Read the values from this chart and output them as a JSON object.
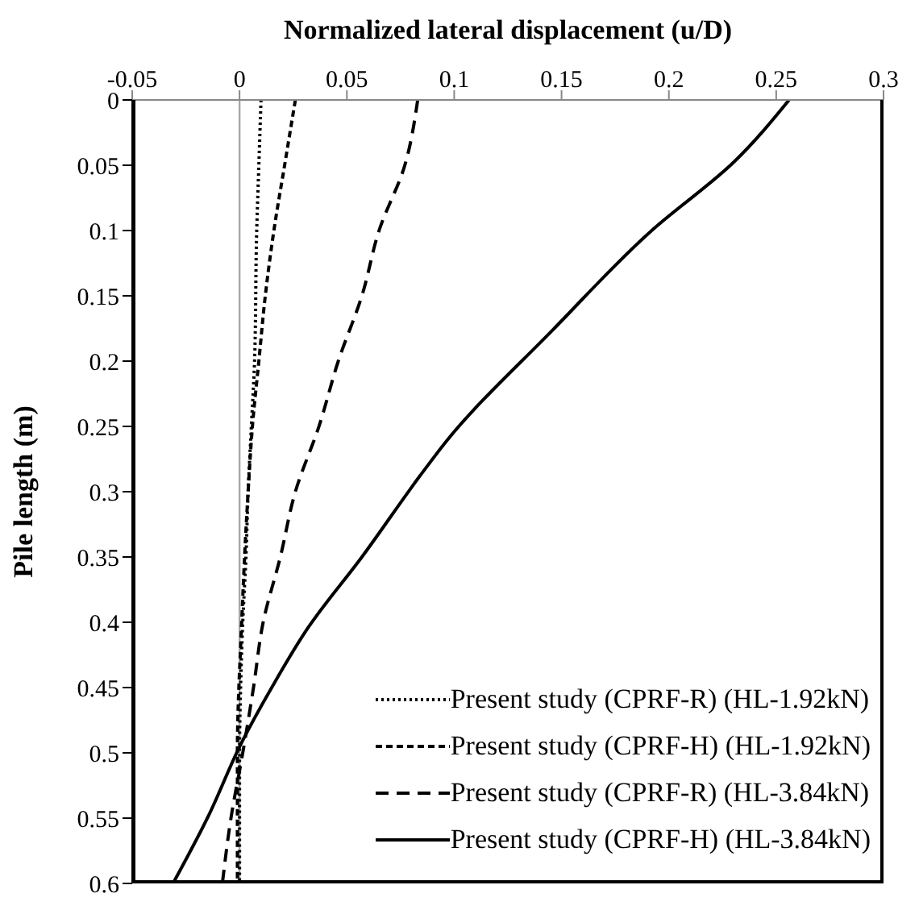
{
  "chart_data": {
    "type": "line",
    "xlabel": "Normalized lateral displacement (u/D)",
    "ylabel": "Pile length (m)",
    "xlim": [
      -0.05,
      0.3
    ],
    "xticks": [
      -0.05,
      0,
      0.05,
      0.1,
      0.15,
      0.2,
      0.25,
      0.3
    ],
    "ylim": [
      0.6,
      0
    ],
    "yticks": [
      0,
      0.05,
      0.1,
      0.15,
      0.2,
      0.25,
      0.3,
      0.35,
      0.4,
      0.45,
      0.5,
      0.55,
      0.6
    ],
    "grid": false,
    "legend": "bottom right",
    "marker": "none",
    "ref_lines": [
      {
        "axis": "x",
        "value": 0,
        "color": "#a6a6a6",
        "line_style": "solid"
      }
    ],
    "series": [
      {
        "name": "Present study (CPRF-R) (HL-1.92kN)",
        "color": "#000000",
        "line_style": "dotted",
        "x": [
          0.01,
          0.009,
          0.008,
          0.007,
          0.0055,
          0.004,
          0.003,
          0.0015,
          0.0005,
          0,
          0
        ],
        "values": [
          0,
          0.05,
          0.1,
          0.2,
          0.25,
          0.3,
          0.35,
          0.4,
          0.45,
          0.5,
          0.6
        ]
      },
      {
        "name": "Present study (CPRF-H) (HL-1.92kN)",
        "color": "#000000",
        "line_style": "dashed",
        "x": [
          0.026,
          0.021,
          0.016,
          0.012,
          0.009,
          0.006,
          0.004,
          0.001,
          -0.001,
          -0.001
        ],
        "values": [
          0,
          0.05,
          0.1,
          0.15,
          0.2,
          0.25,
          0.3,
          0.4,
          0.5,
          0.6
        ]
      },
      {
        "name": "Present study (CPRF-R) (HL-3.84kN)",
        "color": "#000000",
        "line_style": "dashed",
        "x": [
          0.083,
          0.077,
          0.065,
          0.057,
          0.046,
          0.037,
          0.026,
          0.019,
          0.011,
          0.0065,
          0.0015,
          -0.004,
          -0.008
        ],
        "values": [
          0,
          0.05,
          0.1,
          0.15,
          0.2,
          0.25,
          0.3,
          0.35,
          0.4,
          0.45,
          0.5,
          0.55,
          0.6
        ]
      },
      {
        "name": "Present study (CPRF-H) (HL-3.84kN)",
        "color": "#000000",
        "line_style": "solid",
        "x": [
          0.256,
          0.23,
          0.192,
          0.146,
          0.097,
          0.084,
          0.057,
          0.032,
          0.015,
          0.001,
          -0.015,
          -0.031
        ],
        "values": [
          0,
          0.048,
          0.1,
          0.176,
          0.26,
          0.288,
          0.35,
          0.404,
          0.45,
          0.492,
          0.55,
          0.6
        ]
      }
    ]
  }
}
